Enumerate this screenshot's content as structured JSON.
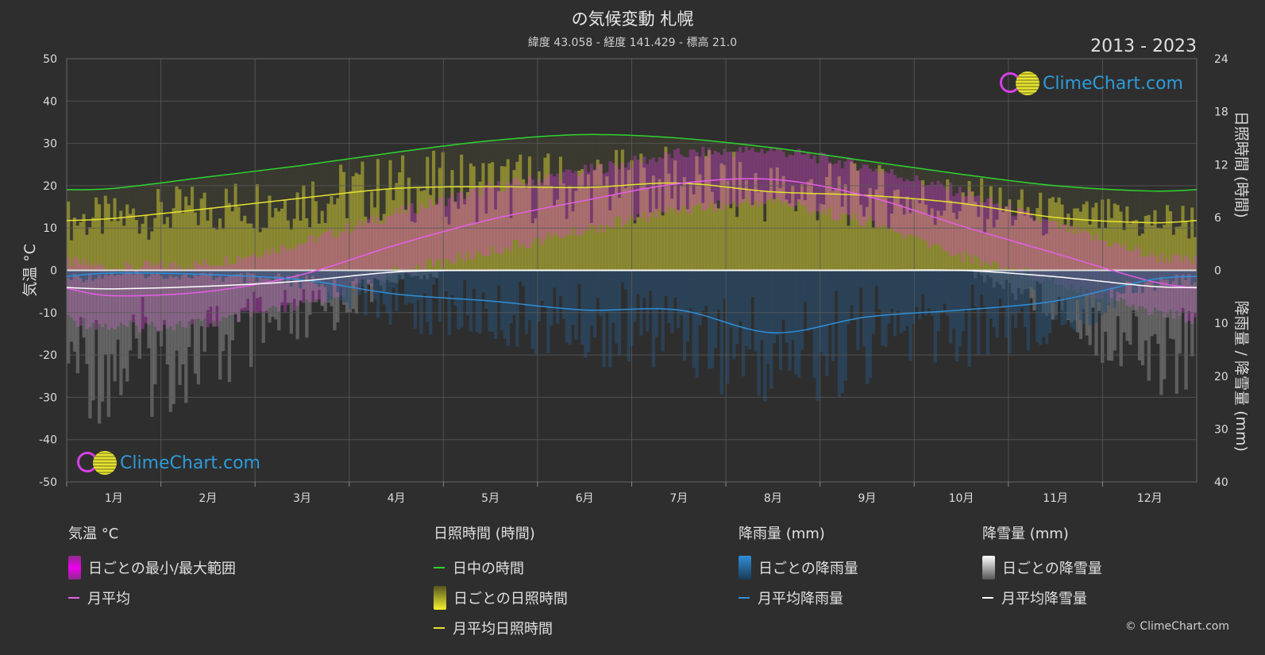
{
  "header": {
    "title": "の気候変動 札幌",
    "subtitle": "緯度 43.058 - 経度 141.429 - 標高 21.0",
    "years": "2013 - 2023"
  },
  "logo": {
    "name": "ClimeChart.com"
  },
  "copyright": "© ClimeChart.com",
  "colors": {
    "background": "#2e2e2e",
    "daylight": "#2ed62e",
    "sunshine": "#e6e332",
    "temperature": "#e65ee6",
    "rain": "#2e8fd8",
    "snow": "#ffffff"
  },
  "legend": {
    "temperature": {
      "title": "気温 °C",
      "items": [
        "日ごとの最小/最大範囲",
        "月平均"
      ]
    },
    "sunshine": {
      "title": "日照時間 (時間)",
      "items": [
        "日中の時間",
        "日ごとの日照時間",
        "月平均日照時間"
      ]
    },
    "rain": {
      "title": "降雨量 (mm)",
      "items": [
        "日ごとの降雨量",
        "月平均降雨量"
      ]
    },
    "snow": {
      "title": "降雪量 (mm)",
      "items": [
        "日ごとの降雪量",
        "月平均降雪量"
      ]
    }
  },
  "chart_data": {
    "type": "line",
    "title": "の気候変動 札幌",
    "subtitle": "緯度 43.058 - 経度 141.429 - 標高 21.0",
    "period": "2013 - 2023",
    "categories": [
      "1月",
      "2月",
      "3月",
      "4月",
      "5月",
      "6月",
      "7月",
      "8月",
      "9月",
      "10月",
      "11月",
      "12月"
    ],
    "y_left": {
      "label": "気温 °C",
      "ticks": [
        50,
        40,
        30,
        20,
        10,
        0,
        -10,
        -20,
        -30,
        -40,
        -50
      ],
      "range": [
        -50,
        50
      ]
    },
    "y_right_top": {
      "label": "日照時間 (時間)",
      "ticks": [
        24,
        18,
        12,
        6,
        0
      ],
      "range": [
        0,
        24
      ]
    },
    "y_right_bottom": {
      "label": "降雨量 / 降雪量 (mm)",
      "ticks": [
        0,
        10,
        20,
        30,
        40
      ],
      "range": [
        0,
        40
      ]
    },
    "series": [
      {
        "name": "日中の時間",
        "unit": "hours",
        "values": [
          9.3,
          10.6,
          11.9,
          13.4,
          14.7,
          15.4,
          15.0,
          13.9,
          12.4,
          10.9,
          9.6,
          9.0
        ]
      },
      {
        "name": "月平均日照時間",
        "unit": "hours",
        "values": [
          5.9,
          7.0,
          8.2,
          9.3,
          9.5,
          9.4,
          9.9,
          8.9,
          8.5,
          7.6,
          6.0,
          5.4
        ]
      },
      {
        "name": "月平均",
        "unit": "°C",
        "values": [
          -6.0,
          -5.0,
          -1.0,
          6.0,
          12.0,
          16.5,
          20.5,
          21.5,
          17.5,
          10.5,
          4.0,
          -2.5
        ]
      },
      {
        "name": "月平均降雨量",
        "unit": "mm",
        "values": [
          0.5,
          0.8,
          1.8,
          4.5,
          5.8,
          7.5,
          7.5,
          11.8,
          8.8,
          7.5,
          5.8,
          1.8
        ]
      },
      {
        "name": "月平均降雪量",
        "unit": "mm",
        "values": [
          3.5,
          3.0,
          2.0,
          0.3,
          0.0,
          0.0,
          0.0,
          0.0,
          0.0,
          0.0,
          1.2,
          3.0
        ]
      },
      {
        "name": "日ごとの最小/最大範囲",
        "unit": "°C",
        "min": [
          -12,
          -11,
          -7,
          1,
          6,
          11,
          16,
          18,
          13,
          5,
          -1,
          -8
        ],
        "max": [
          -1,
          0,
          5,
          12,
          18,
          22,
          26,
          27,
          23,
          17,
          9,
          2
        ]
      }
    ],
    "grid": true
  }
}
